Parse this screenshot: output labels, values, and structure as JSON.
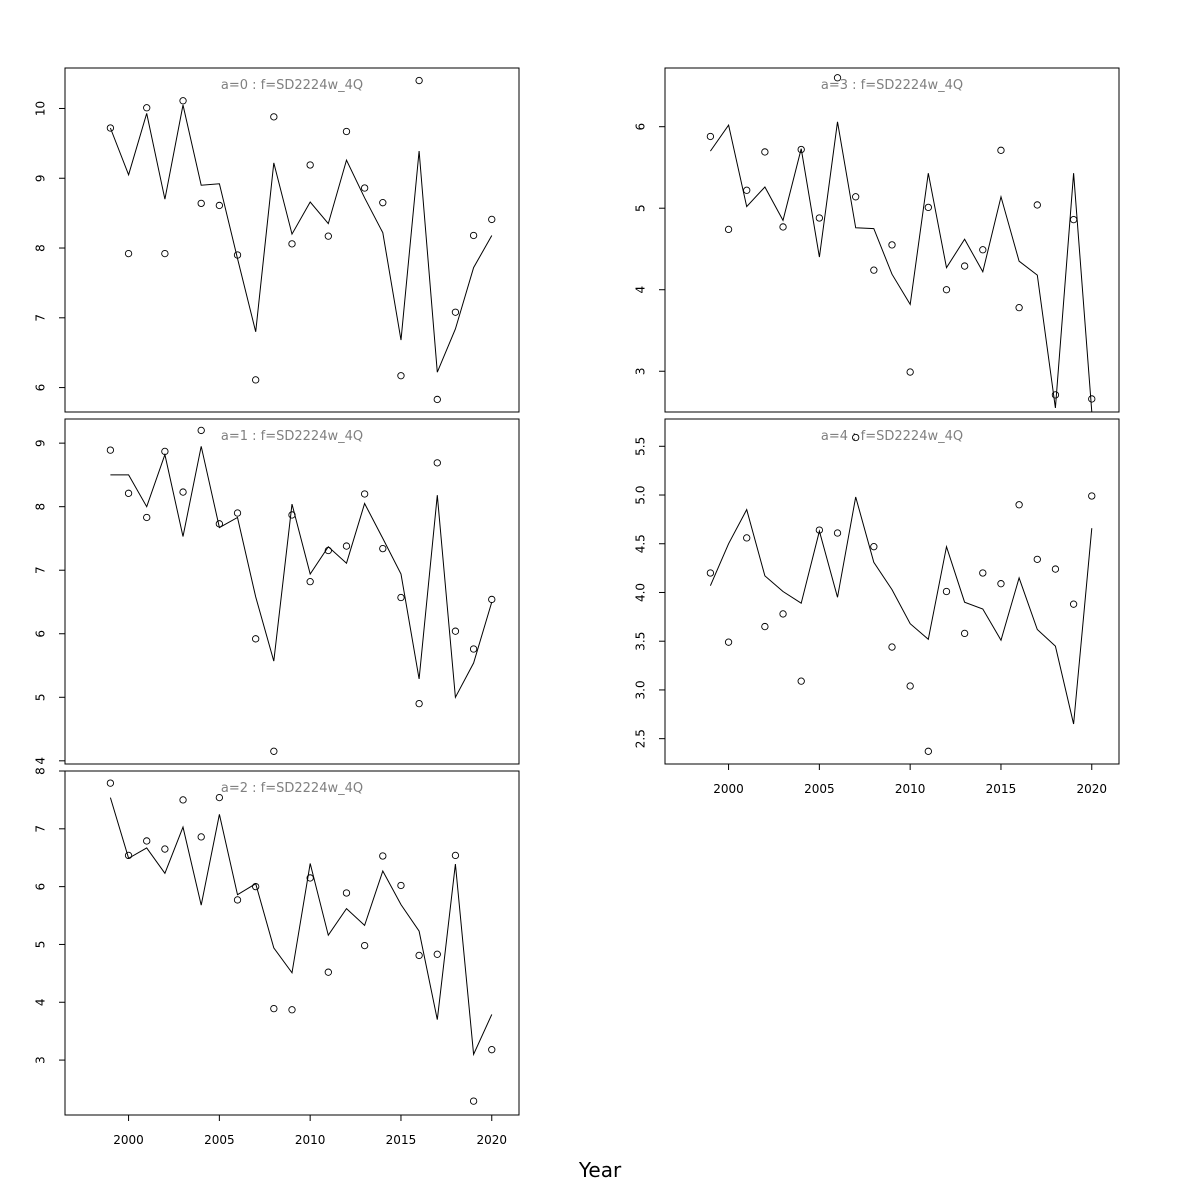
{
  "xlabel": "Year",
  "chart_data": [
    {
      "type": "line",
      "title": "a=0  :  f=SD2224w_4Q",
      "x": [
        1999,
        2000,
        2001,
        2002,
        2003,
        2004,
        2005,
        2006,
        2007,
        2008,
        2009,
        2010,
        2011,
        2012,
        2013,
        2014,
        2015,
        2016,
        2017,
        2018,
        2019,
        2020
      ],
      "series": [
        {
          "kind": "points",
          "values": [
            9.72,
            7.92,
            10.01,
            7.92,
            10.11,
            8.64,
            8.61,
            7.9,
            6.11,
            9.88,
            8.06,
            9.19,
            8.17,
            9.67,
            8.86,
            8.65,
            6.17,
            10.4,
            5.83,
            7.08,
            8.18,
            8.41
          ]
        },
        {
          "kind": "line",
          "values": [
            9.72,
            9.05,
            9.93,
            8.7,
            10.05,
            8.9,
            8.92,
            7.85,
            6.8,
            9.22,
            8.2,
            8.66,
            8.35,
            9.26,
            8.72,
            8.22,
            6.68,
            9.39,
            6.22,
            6.84,
            7.72,
            8.18
          ]
        }
      ],
      "yticks": [
        6,
        7,
        8,
        9,
        10
      ],
      "ylim": [
        5.65,
        10.58
      ],
      "xlim": [
        1996.5,
        2021.5
      ],
      "xticks": [],
      "panel": "col1-row1"
    },
    {
      "type": "line",
      "title": "a=1  :  f=SD2224w_4Q",
      "x": [
        1999,
        2000,
        2001,
        2002,
        2003,
        2004,
        2005,
        2006,
        2007,
        2008,
        2009,
        2010,
        2011,
        2012,
        2013,
        2014,
        2015,
        2016,
        2017,
        2018,
        2019,
        2020
      ],
      "series": [
        {
          "kind": "points",
          "values": [
            8.89,
            8.21,
            7.83,
            8.87,
            8.23,
            9.2,
            7.73,
            7.9,
            5.92,
            4.15,
            7.87,
            6.82,
            7.31,
            7.38,
            8.2,
            7.34,
            6.57,
            4.9,
            8.69,
            6.04,
            5.76,
            6.54
          ]
        },
        {
          "kind": "line",
          "values": [
            8.5,
            8.5,
            8.0,
            8.82,
            7.53,
            8.95,
            7.67,
            7.83,
            6.58,
            5.57,
            8.04,
            6.94,
            7.37,
            7.11,
            8.05,
            7.5,
            6.94,
            5.29,
            8.18,
            5.0,
            5.54,
            6.5
          ]
        }
      ],
      "yticks": [
        4,
        5,
        6,
        7,
        8,
        9
      ],
      "ylim": [
        3.95,
        9.38
      ],
      "xlim": [
        1996.5,
        2021.5
      ],
      "xticks": [],
      "panel": "col1-row2"
    },
    {
      "type": "line",
      "title": "a=2  :  f=SD2224w_4Q",
      "x": [
        1999,
        2000,
        2001,
        2002,
        2003,
        2004,
        2005,
        2006,
        2007,
        2008,
        2009,
        2010,
        2011,
        2012,
        2013,
        2014,
        2015,
        2016,
        2017,
        2018,
        2019,
        2020
      ],
      "series": [
        {
          "kind": "points",
          "values": [
            7.79,
            6.54,
            6.79,
            6.65,
            7.5,
            6.86,
            7.54,
            5.77,
            6.0,
            3.89,
            3.87,
            6.15,
            4.52,
            5.89,
            4.98,
            6.53,
            6.02,
            4.81,
            4.83,
            6.54,
            2.29,
            3.18
          ]
        },
        {
          "kind": "line",
          "values": [
            7.54,
            6.49,
            6.67,
            6.23,
            7.03,
            5.68,
            7.25,
            5.86,
            6.05,
            4.94,
            4.51,
            6.4,
            5.16,
            5.62,
            5.33,
            6.27,
            5.69,
            5.23,
            3.7,
            6.39,
            3.1,
            3.79
          ]
        }
      ],
      "yticks": [
        3,
        4,
        5,
        6,
        7,
        8
      ],
      "ylim": [
        2.05,
        8.0
      ],
      "xlim": [
        1996.5,
        2021.5
      ],
      "xticks": [
        2000,
        2005,
        2010,
        2015,
        2020
      ],
      "panel": "col1-row3"
    },
    {
      "type": "line",
      "title": "a=3  :  f=SD2224w_4Q",
      "x": [
        1999,
        2000,
        2001,
        2002,
        2003,
        2004,
        2005,
        2006,
        2007,
        2008,
        2009,
        2010,
        2011,
        2012,
        2013,
        2014,
        2015,
        2016,
        2017,
        2018,
        2019,
        2020
      ],
      "series": [
        {
          "kind": "points",
          "values": [
            5.88,
            4.74,
            5.22,
            5.69,
            4.77,
            5.72,
            4.88,
            6.6,
            5.14,
            4.24,
            4.55,
            2.99,
            5.01,
            4.0,
            4.29,
            4.49,
            5.71,
            3.78,
            5.04,
            2.71,
            4.86,
            2.66
          ]
        },
        {
          "kind": "line",
          "values": [
            5.7,
            6.02,
            5.02,
            5.26,
            4.85,
            5.73,
            4.4,
            6.06,
            4.76,
            4.75,
            4.19,
            3.82,
            5.43,
            4.27,
            4.62,
            4.22,
            5.14,
            4.35,
            4.18,
            2.55,
            5.43,
            2.5
          ]
        }
      ],
      "yticks": [
        3,
        4,
        5,
        6
      ],
      "ylim": [
        2.5,
        6.72
      ],
      "xlim": [
        1996.5,
        2021.5
      ],
      "xticks": [],
      "panel": "col2-row1"
    },
    {
      "type": "line",
      "title": "a=4  :  f=SD2224w_4Q",
      "x": [
        1999,
        2000,
        2001,
        2002,
        2003,
        2004,
        2005,
        2006,
        2007,
        2008,
        2009,
        2010,
        2011,
        2012,
        2013,
        2014,
        2015,
        2016,
        2017,
        2018,
        2019,
        2020
      ],
      "series": [
        {
          "kind": "points",
          "values": [
            4.2,
            3.49,
            4.56,
            3.65,
            3.78,
            3.09,
            4.64,
            4.61,
            5.59,
            4.47,
            3.44,
            3.04,
            2.37,
            4.01,
            3.58,
            4.2,
            4.09,
            4.9,
            4.34,
            4.24,
            3.88,
            4.99
          ]
        },
        {
          "kind": "line",
          "values": [
            4.07,
            4.5,
            4.85,
            4.17,
            4.01,
            3.89,
            4.63,
            3.95,
            4.98,
            4.31,
            4.03,
            3.68,
            3.52,
            4.47,
            3.9,
            3.83,
            3.51,
            4.15,
            3.62,
            3.45,
            2.65,
            4.66
          ]
        }
      ],
      "yticks": [
        2.5,
        3.0,
        3.5,
        4.0,
        4.5,
        5.0,
        5.5
      ],
      "ylim": [
        2.24,
        5.78
      ],
      "xlim": [
        1996.5,
        2021.5
      ],
      "xticks": [
        2000,
        2005,
        2010,
        2015,
        2020
      ],
      "panel": "col2-row2"
    }
  ]
}
